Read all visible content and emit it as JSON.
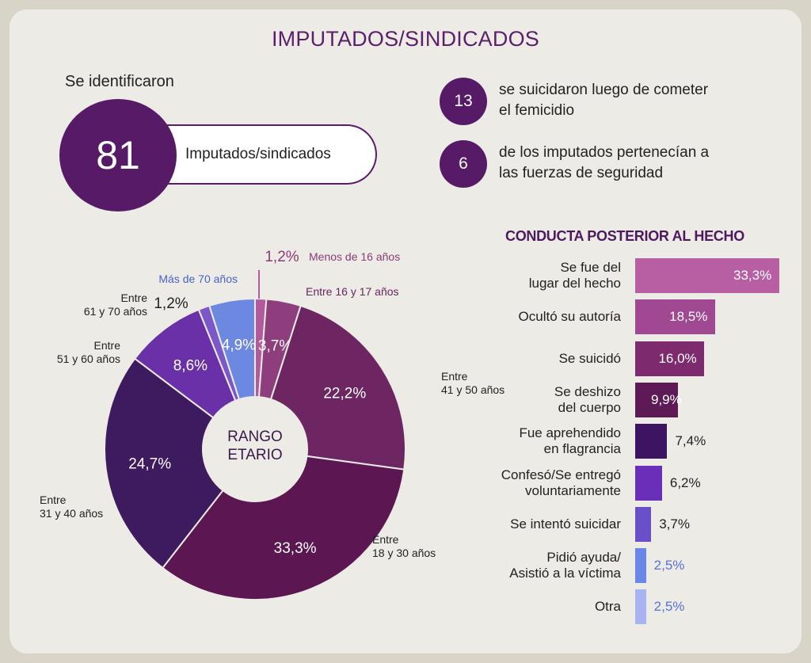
{
  "title": "IMPUTADOS/SINDICADOS",
  "identified": {
    "intro": "Se identificaron",
    "count": "81",
    "label": "Imputados/sindicados"
  },
  "facts": [
    {
      "number": "13",
      "line1": "se suicidaron luego de cometer",
      "line2": "el femicidio"
    },
    {
      "number": "6",
      "line1": "de los imputados pertenecían a",
      "line2": "las fuerzas de seguridad"
    }
  ],
  "donut": {
    "center_line1": "RANGO",
    "center_line2": "ETARIO"
  },
  "bars": {
    "title": "CONDUCTA POSTERIOR AL HECHO"
  },
  "chart_data": [
    {
      "type": "pie",
      "title": "RANGO ETARIO",
      "categories": [
        "Menos de 16 años",
        "Entre 16 y 17 años",
        "Entre 41 y 50 años",
        "Entre 18 y 30 años",
        "Entre 31 y 40 años",
        "Entre 51 y 60 años",
        "Entre 61 y 70 años",
        "Más de 70 años"
      ],
      "labels": [
        [
          "Menos de 16 años"
        ],
        [
          "Entre 16 y 17 años"
        ],
        [
          "Entre",
          "41 y 50 años"
        ],
        [
          "Entre",
          "18 y 30 años"
        ],
        [
          "Entre",
          "31 y 40 años"
        ],
        [
          "Entre",
          "51 y 60 años"
        ],
        [
          "Entre",
          "61 y 70 años"
        ],
        [
          "Más de 70 años"
        ]
      ],
      "values": [
        1.2,
        3.7,
        22.2,
        33.3,
        24.7,
        8.6,
        1.2,
        4.9
      ],
      "value_labels": [
        "1,2%",
        "3,7%",
        "22,2%",
        "33,3%",
        "24,7%",
        "8,6%",
        "1,2%",
        "4,9%"
      ],
      "colors": [
        "#b35a9c",
        "#8e3e7c",
        "#6d2662",
        "#5c1652",
        "#3e1a5e",
        "#6a30a8",
        "#7a58c8",
        "#6c88e0"
      ],
      "label_colors": [
        "#8e3a76",
        "#6a2660",
        "#222222",
        "#222222",
        "#222222",
        "#222222",
        "#222222",
        "#4a63c8"
      ]
    },
    {
      "type": "bar",
      "orientation": "horizontal",
      "title": "CONDUCTA POSTERIOR AL HECHO",
      "categories": [
        "Se fue del lugar del hecho",
        "Ocultó su autoría",
        "Se suicidó",
        "Se deshizo del cuerpo",
        "Fue aprehendido en flagrancia",
        "Confesó/Se entregó voluntariamente",
        "Se intentó suicidar",
        "Pidió ayuda/ Asistió a la víctima",
        "Otra"
      ],
      "category_lines": [
        [
          "Se fue del",
          "lugar del hecho"
        ],
        [
          "Ocultó su autoría"
        ],
        [
          "Se suicidó"
        ],
        [
          "Se deshizo",
          "del cuerpo"
        ],
        [
          "Fue aprehendido",
          "en flagrancia"
        ],
        [
          "Confesó/Se entregó",
          "voluntariamente"
        ],
        [
          "Se intentó suicidar"
        ],
        [
          "Pidió ayuda/",
          "Asistió a la víctima"
        ],
        [
          "Otra"
        ]
      ],
      "values": [
        33.3,
        18.5,
        16.0,
        9.9,
        7.4,
        6.2,
        3.7,
        2.5,
        2.5
      ],
      "value_labels": [
        "33,3%",
        "18,5%",
        "16,0%",
        "9,9%",
        "7,4%",
        "6,2%",
        "3,7%",
        "2,5%",
        "2,5%"
      ],
      "colors": [
        "#b85fa3",
        "#a04891",
        "#7d2b6e",
        "#5e1a54",
        "#3d1462",
        "#6a2fb8",
        "#6b4fc8",
        "#6a86e6",
        "#a8b3f2"
      ],
      "value_colors": [
        "#ffffff",
        "#ffffff",
        "#ffffff",
        "#ffffff",
        "#222222",
        "#222222",
        "#222222",
        "#5a72d8",
        "#5a72d8"
      ]
    }
  ]
}
